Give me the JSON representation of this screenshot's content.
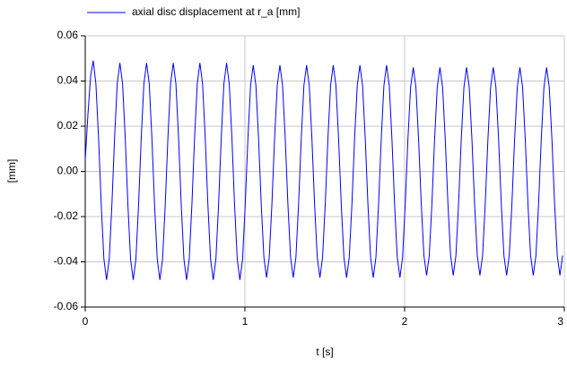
{
  "chart_data": {
    "type": "line",
    "xlabel": "t [s]",
    "ylabel": "[mm]",
    "xlim": [
      0,
      3
    ],
    "xticks": [
      0,
      1,
      2,
      3
    ],
    "ylim": [
      -0.06,
      0.06
    ],
    "yticks": [
      0.06,
      0.04,
      0.02,
      {
        "value": 0,
        "label": "0.00"
      },
      -0.02,
      -0.04,
      -0.06
    ],
    "grid": true,
    "x": [
      0,
      0.0167,
      0.0334,
      0.0501,
      0.0668,
      0.0835,
      0.1002,
      0.1169,
      0.1336,
      0.1503,
      0.167,
      0.1837,
      0.2004,
      0.2171,
      0.2338,
      0.2505,
      0.2672,
      0.2839,
      0.3006,
      0.3173,
      0.334,
      0.3507,
      0.3674,
      0.3841,
      0.4008,
      0.4175,
      0.4342,
      0.4509,
      0.4676,
      0.4843,
      0.501,
      0.5177,
      0.5344,
      0.5511,
      0.5678,
      0.5845,
      0.6012,
      0.6179,
      0.6346,
      0.6513,
      0.668,
      0.6847,
      0.7014,
      0.7181,
      0.7348,
      0.7515,
      0.7682,
      0.7849,
      0.8016,
      0.8183,
      0.835,
      0.8517,
      0.8684,
      0.8851,
      0.9018,
      0.9185,
      0.9352,
      0.9519,
      0.9686,
      0.9853,
      1.002,
      1.0187,
      1.0354,
      1.0521,
      1.0688,
      1.0855,
      1.1022,
      1.1189,
      1.1356,
      1.1523,
      1.169,
      1.1857,
      1.2024,
      1.2191,
      1.2358,
      1.2525,
      1.2692,
      1.2859,
      1.3026,
      1.3193,
      1.336,
      1.3527,
      1.3694,
      1.3861,
      1.4028,
      1.4195,
      1.4362,
      1.4529,
      1.4696,
      1.4863,
      1.503,
      1.5197,
      1.5364,
      1.5531,
      1.5698,
      1.5865,
      1.6032,
      1.6199,
      1.6366,
      1.6533,
      1.67,
      1.6867,
      1.7034,
      1.7201,
      1.7368,
      1.7535,
      1.7702,
      1.7869,
      1.8036,
      1.8203,
      1.837,
      1.8537,
      1.8704,
      1.8871,
      1.9038,
      1.9205,
      1.9372,
      1.9539,
      1.9706,
      1.9873,
      2.004,
      2.0207,
      2.0374,
      2.0541,
      2.0708,
      2.0875,
      2.1042,
      2.1209,
      2.1376,
      2.1543,
      2.171,
      2.1877,
      2.2044,
      2.2211,
      2.2378,
      2.2545,
      2.2712,
      2.2879,
      2.3046,
      2.3213,
      2.338,
      2.3547,
      2.3714,
      2.3881,
      2.4048,
      2.4215,
      2.4382,
      2.4549,
      2.4716,
      2.4883,
      2.505,
      2.5217,
      2.5384,
      2.5551,
      2.5718,
      2.5885,
      2.6052,
      2.6219,
      2.6386,
      2.6553,
      2.672,
      2.6887,
      2.7054,
      2.7221,
      2.7388,
      2.7555,
      2.7722,
      2.7889,
      2.8056,
      2.8223,
      2.839,
      2.8557,
      2.8724,
      2.8891,
      2.9058,
      2.9225,
      2.9392,
      2.9559,
      2.9726,
      2.9893
    ],
    "series": [
      {
        "name": "axial disc displacement at r_a [mm]",
        "color": "#0000ff",
        "values": [
          0.005,
          0.025,
          0.042,
          0.049,
          0.0388,
          0.0148,
          -0.0148,
          -0.0388,
          -0.048,
          -0.0388,
          -0.0148,
          0.0148,
          0.0388,
          0.048,
          0.0388,
          0.0148,
          -0.0148,
          -0.0388,
          -0.048,
          -0.0388,
          -0.0148,
          0.0148,
          0.0388,
          0.048,
          0.0388,
          0.0148,
          -0.0148,
          -0.0388,
          -0.048,
          -0.0388,
          -0.0148,
          0.0148,
          0.0388,
          0.048,
          0.0388,
          0.0148,
          -0.0148,
          -0.0388,
          -0.048,
          -0.0388,
          -0.0148,
          0.0148,
          0.0388,
          0.048,
          0.0388,
          0.0148,
          -0.0148,
          -0.0388,
          -0.048,
          -0.0388,
          -0.0148,
          0.0148,
          0.0388,
          0.048,
          0.0388,
          0.0148,
          -0.0148,
          -0.0388,
          -0.048,
          -0.0388,
          -0.0145,
          0.0145,
          0.038,
          0.047,
          0.038,
          0.0145,
          -0.0145,
          -0.038,
          -0.047,
          -0.038,
          -0.0145,
          0.0145,
          0.038,
          0.047,
          0.038,
          0.0145,
          -0.0145,
          -0.038,
          -0.047,
          -0.038,
          -0.0145,
          0.0145,
          0.038,
          0.047,
          0.038,
          0.0145,
          -0.0145,
          -0.038,
          -0.047,
          -0.038,
          -0.0145,
          0.0145,
          0.038,
          0.047,
          0.038,
          0.0145,
          -0.0145,
          -0.038,
          -0.047,
          -0.038,
          -0.0145,
          0.0145,
          0.038,
          0.047,
          0.038,
          0.0145,
          -0.0145,
          -0.038,
          -0.047,
          -0.038,
          -0.0145,
          0.0145,
          0.038,
          0.047,
          0.038,
          0.0145,
          -0.0145,
          -0.038,
          -0.047,
          -0.038,
          -0.0142,
          0.0142,
          0.0372,
          0.046,
          0.0372,
          0.0142,
          -0.0142,
          -0.0372,
          -0.046,
          -0.0372,
          -0.0142,
          0.0142,
          0.0372,
          0.046,
          0.0372,
          0.0142,
          -0.0142,
          -0.0372,
          -0.046,
          -0.0372,
          -0.0142,
          0.0142,
          0.0372,
          0.046,
          0.0372,
          0.0142,
          -0.0142,
          -0.0372,
          -0.046,
          -0.0372,
          -0.0142,
          0.0142,
          0.0372,
          0.046,
          0.0372,
          0.0142,
          -0.0142,
          -0.0372,
          -0.046,
          -0.0372,
          -0.0142,
          0.0142,
          0.0372,
          0.046,
          0.0372,
          0.0142,
          -0.0142,
          -0.0372,
          -0.046,
          -0.0372,
          -0.0142,
          0.0142,
          0.0372,
          0.046,
          0.0372,
          0.0142,
          -0.0142,
          -0.0372,
          -0.046,
          -0.0372
        ]
      }
    ]
  }
}
